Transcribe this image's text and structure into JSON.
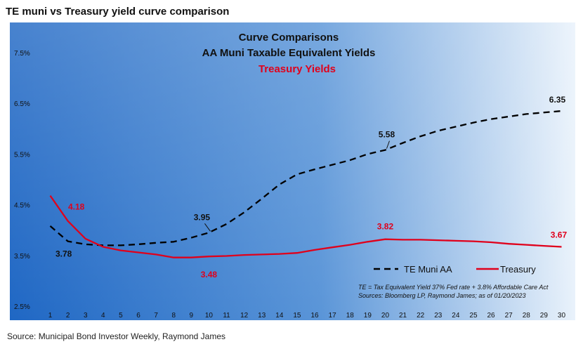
{
  "figure": {
    "title": "TE muni vs Treasury yield curve comparison",
    "source": "Source: Municipal Bond Investor Weekly, Raymond James"
  },
  "colors": {
    "background_left": "#1f67c4",
    "background_right": "#e9f2fb",
    "muni_line": "#000000",
    "treasury_line": "#e0001b",
    "title_dark": "#111111",
    "title_red": "#e0001b"
  },
  "chart_data": {
    "type": "line",
    "title_lines": [
      "Curve Comparisons",
      "AA Muni Taxable Equivalent Yields"
    ],
    "title_red_line": "Treasury Yields",
    "x": [
      1,
      2,
      3,
      4,
      5,
      6,
      7,
      8,
      9,
      10,
      11,
      12,
      13,
      14,
      15,
      16,
      17,
      18,
      19,
      20,
      21,
      22,
      23,
      24,
      25,
      26,
      27,
      28,
      29,
      30
    ],
    "xlim": [
      0.7,
      30.3
    ],
    "ylim": [
      2.5,
      7.5
    ],
    "y_ticks": [
      {
        "value": 2.5,
        "label": "2.5%"
      },
      {
        "value": 3.5,
        "label": "3.5%"
      },
      {
        "value": 4.5,
        "label": "4.5%"
      },
      {
        "value": 5.5,
        "label": "5.5%"
      },
      {
        "value": 6.5,
        "label": "6.5%"
      },
      {
        "value": 7.5,
        "label": "7.5%"
      }
    ],
    "grid": false,
    "legend_position": "bottom-right",
    "series": [
      {
        "name": "TE Muni AA",
        "style": "dashed",
        "color": "#000000",
        "values": [
          4.08,
          3.78,
          3.72,
          3.7,
          3.7,
          3.72,
          3.75,
          3.77,
          3.85,
          3.95,
          4.12,
          4.35,
          4.62,
          4.9,
          5.1,
          5.2,
          5.29,
          5.38,
          5.5,
          5.58,
          5.72,
          5.85,
          5.96,
          6.04,
          6.12,
          6.19,
          6.24,
          6.29,
          6.32,
          6.35
        ]
      },
      {
        "name": "Treasury",
        "style": "solid",
        "color": "#e0001b",
        "values": [
          4.68,
          4.18,
          3.83,
          3.67,
          3.6,
          3.56,
          3.52,
          3.46,
          3.46,
          3.48,
          3.49,
          3.51,
          3.52,
          3.53,
          3.55,
          3.61,
          3.66,
          3.71,
          3.77,
          3.82,
          3.81,
          3.81,
          3.8,
          3.79,
          3.78,
          3.76,
          3.73,
          3.71,
          3.69,
          3.67
        ]
      }
    ],
    "annotations": [
      {
        "series": 1,
        "x": 2,
        "text": "4.18"
      },
      {
        "series": 0,
        "x": 2,
        "text": "3.78"
      },
      {
        "series": 0,
        "x": 10,
        "text": "3.95"
      },
      {
        "series": 1,
        "x": 10,
        "text": "3.48"
      },
      {
        "series": 0,
        "x": 20,
        "text": "5.58"
      },
      {
        "series": 1,
        "x": 20,
        "text": "3.82"
      },
      {
        "series": 0,
        "x": 30,
        "text": "6.35"
      },
      {
        "series": 1,
        "x": 30,
        "text": "3.67"
      }
    ],
    "footnotes": [
      "TE = Tax Equivalent Yield 37%  Fed rate + 3.8% Affordable Care Act",
      "Sources:  Bloomberg LP, Raymond James; as of 01/20/2023"
    ]
  }
}
